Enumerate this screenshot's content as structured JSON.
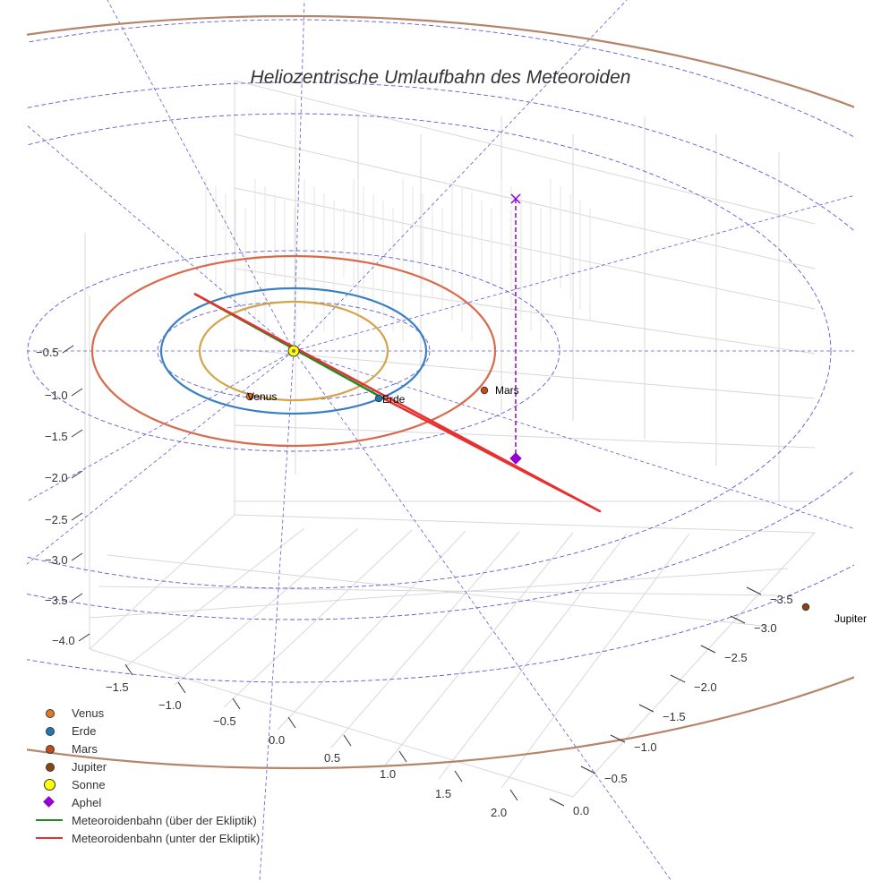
{
  "chart_data": {
    "type": "scatter3d",
    "title": "Heliozentrische Umlaufbahn des Meteoroiden",
    "x_ticks": [
      "−1.5",
      "−1.0",
      "−0.5",
      "0.0",
      "0.5",
      "1.0",
      "1.5",
      "2.0"
    ],
    "y_ticks": [
      "−3.5",
      "−3.0",
      "−2.5",
      "−2.0",
      "−1.5",
      "−1.0",
      "−0.5",
      "0.0"
    ],
    "z_ticks": [
      "−0.5",
      "−1.0",
      "−1.5",
      "−2.0",
      "−2.5",
      "−3.0",
      "−3.5",
      "−4.0"
    ],
    "orbits": [
      {
        "name": "Venus",
        "radius_au": 0.72,
        "color": "#d4a44a"
      },
      {
        "name": "Erde",
        "radius_au": 1.0,
        "color": "#3a7fc4"
      },
      {
        "name": "Mars",
        "radius_au": 1.52,
        "color": "#d9694a"
      },
      {
        "name": "Jupiter",
        "radius_au": 5.2,
        "color": "#b5856a"
      }
    ],
    "bodies": [
      {
        "name": "Venus",
        "label": "Venus",
        "color": "#e07b24"
      },
      {
        "name": "Erde",
        "label": "Erde",
        "color": "#1f77b4"
      },
      {
        "name": "Mars",
        "label": "Mars",
        "color": "#c44c1a"
      },
      {
        "name": "Jupiter",
        "label": "Jupiter",
        "color": "#8b4513"
      },
      {
        "name": "Sonne",
        "label": "",
        "color": "#ffff00"
      }
    ],
    "meteoroid": {
      "above_color": "#228b22",
      "below_color": "#e83030",
      "aphel_color": "#9400d3"
    },
    "legend": [
      {
        "label": "Venus",
        "kind": "dot",
        "color": "#e07b24"
      },
      {
        "label": "Erde",
        "kind": "dot",
        "color": "#1f77b4"
      },
      {
        "label": "Mars",
        "kind": "dot",
        "color": "#c44c1a"
      },
      {
        "label": "Jupiter",
        "kind": "dot",
        "color": "#8b4513"
      },
      {
        "label": "Sonne",
        "kind": "big",
        "color": "#ffff00"
      },
      {
        "label": "Aphel",
        "kind": "diamond",
        "color": "#9400d3"
      },
      {
        "label": "Meteoroidenbahn (über der Ekliptik)",
        "kind": "line",
        "color": "#228b22"
      },
      {
        "label": "Meteoroidenbahn (unter der Ekliptik)",
        "kind": "line",
        "color": "#e83030"
      }
    ],
    "grid": true,
    "legend_position": "bottom-left"
  }
}
